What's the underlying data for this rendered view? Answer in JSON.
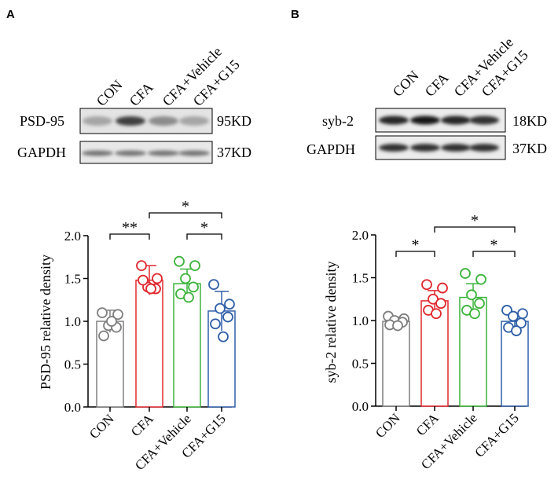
{
  "colors": {
    "series": [
      "#7f7f7f",
      "#e0282d",
      "#3cb43c",
      "#2f5fa8"
    ],
    "axis": "#000000"
  },
  "panels": [
    {
      "letter": "A",
      "lane_labels": [
        "CON",
        "CFA",
        "CFA+Vehicle",
        "CFA+G15"
      ],
      "blots": [
        {
          "name": "PSD-95",
          "size": "95KD",
          "band_strength": [
            0.35,
            0.75,
            0.45,
            0.35
          ]
        },
        {
          "name": "GAPDH",
          "size": "37KD",
          "band_strength": [
            0.55,
            0.55,
            0.55,
            0.55
          ]
        }
      ],
      "significance": [
        "**",
        "*",
        "*"
      ]
    },
    {
      "letter": "B",
      "lane_labels": [
        "CON",
        "CFA",
        "CFA+Vehicle",
        "CFA+G15"
      ],
      "blots": [
        {
          "name": "syb-2",
          "size": "18KD",
          "band_strength": [
            0.85,
            0.9,
            0.85,
            0.8
          ]
        },
        {
          "name": "GAPDH",
          "size": "37KD",
          "band_strength": [
            0.8,
            0.8,
            0.8,
            0.8
          ]
        }
      ],
      "significance": [
        "*",
        "*",
        "*"
      ]
    }
  ],
  "chart_data": [
    {
      "type": "bar",
      "panel": "A",
      "categories": [
        "CON",
        "CFA",
        "CFA+Vehicle",
        "CFA+G15"
      ],
      "values": [
        1.0,
        1.48,
        1.44,
        1.12
      ],
      "sd": [
        0.13,
        0.17,
        0.17,
        0.23
      ],
      "points": [
        [
          1.1,
          1.08,
          0.95,
          0.93,
          0.83,
          1.0
        ],
        [
          1.65,
          1.5,
          1.4,
          1.38,
          1.48,
          1.38
        ],
        [
          1.7,
          1.65,
          1.5,
          1.4,
          1.32,
          1.28
        ],
        [
          1.43,
          1.2,
          1.15,
          1.05,
          0.97,
          0.82
        ]
      ],
      "ylabel": "PSD-95 relative density",
      "ylim": [
        0,
        2.0
      ],
      "yticks": [
        "0.0",
        "0.5",
        "1.0",
        "1.5",
        "2.0"
      ],
      "comparisons": [
        [
          0,
          1
        ],
        [
          1,
          3
        ],
        [
          2,
          3
        ]
      ]
    },
    {
      "type": "bar",
      "panel": "B",
      "categories": [
        "CON",
        "CFA",
        "CFA+Vehicle",
        "CFA+G15"
      ],
      "values": [
        0.99,
        1.23,
        1.27,
        0.99
      ],
      "sd": [
        0.05,
        0.12,
        0.16,
        0.09
      ],
      "points": [
        [
          1.05,
          1.02,
          1.0,
          0.98,
          0.95,
          0.94
        ],
        [
          1.42,
          1.38,
          1.25,
          1.2,
          1.12,
          1.08
        ],
        [
          1.55,
          1.48,
          1.3,
          1.2,
          1.12,
          1.08
        ],
        [
          1.12,
          1.08,
          1.05,
          0.97,
          0.92,
          0.88
        ]
      ],
      "ylabel": "syb-2 relative density",
      "ylim": [
        0,
        2.0
      ],
      "yticks": [
        "0.0",
        "0.5",
        "1.0",
        "1.5",
        "2.0"
      ],
      "comparisons": [
        [
          0,
          1
        ],
        [
          1,
          3
        ],
        [
          2,
          3
        ]
      ]
    }
  ]
}
